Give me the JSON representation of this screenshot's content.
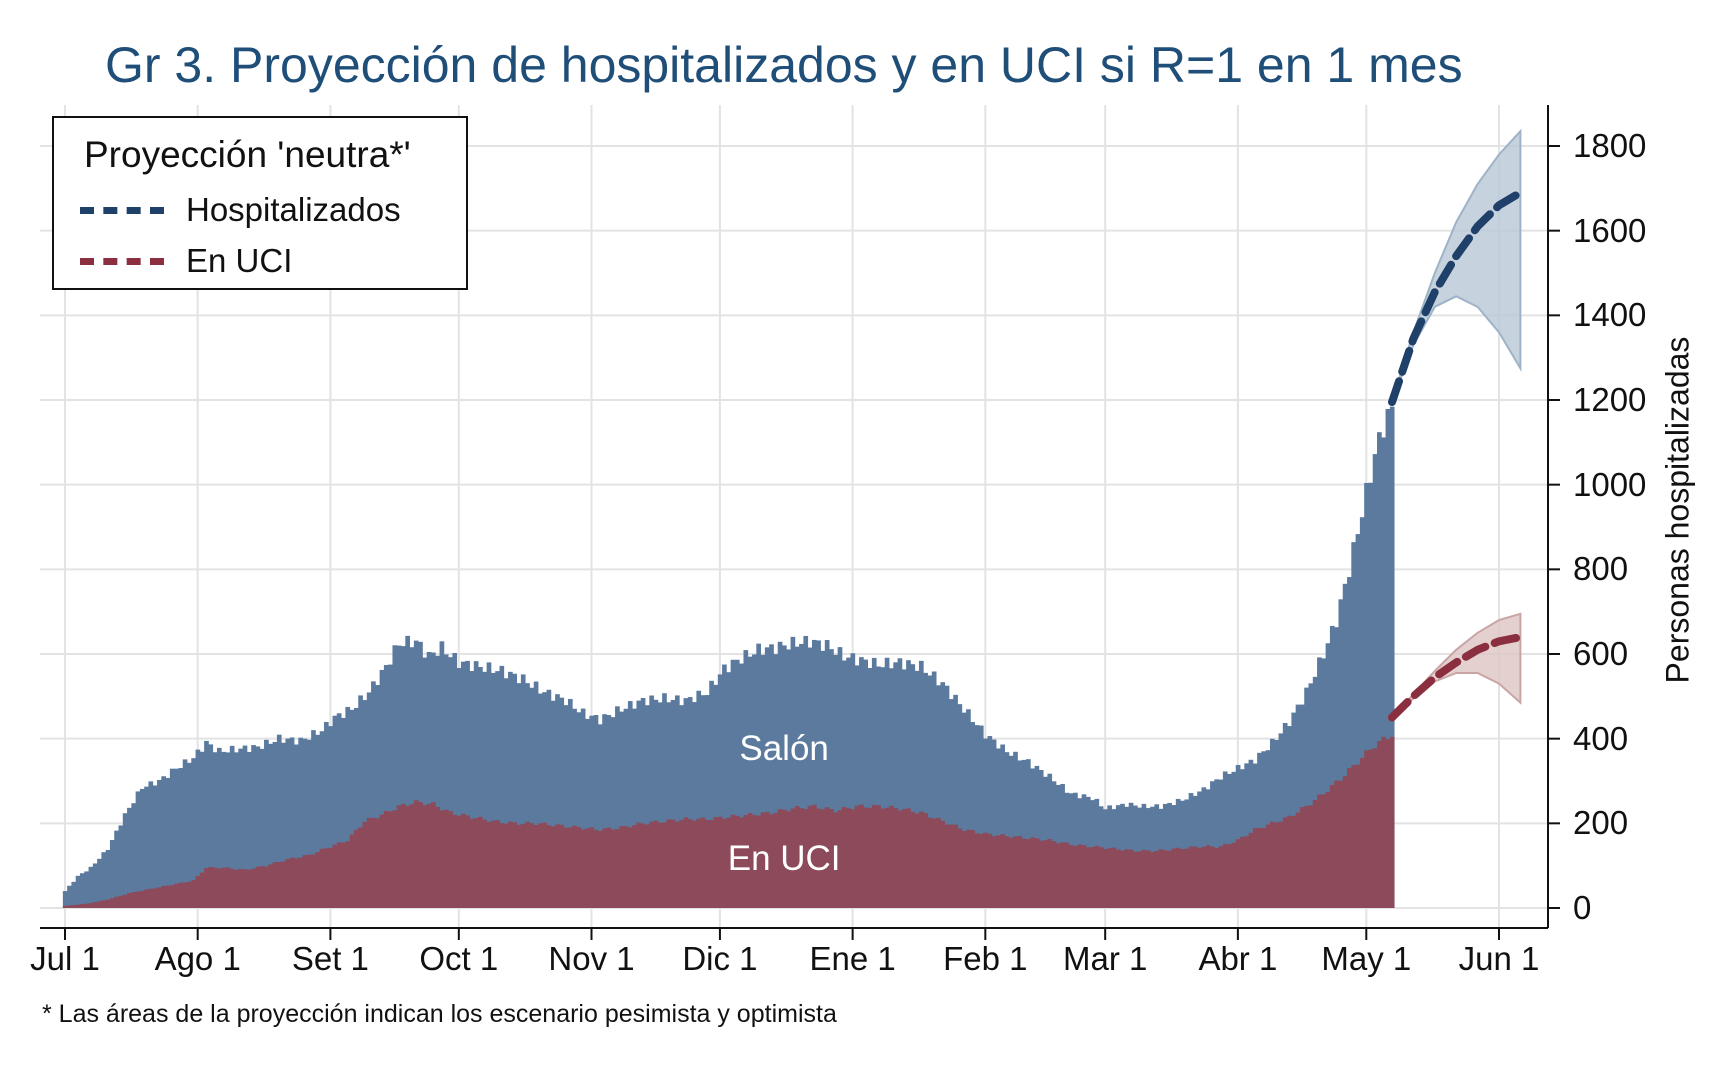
{
  "title": "Gr 3. Proyección de hospitalizados y en UCI si R=1 en 1 mes",
  "footnote": "* Las áreas de la proyección indican los escenario pesimista y optimista",
  "colors": {
    "title": "#1f4e79",
    "hosp_area": "#5b7a9e",
    "uci_area": "#8c4a5a",
    "hosp_line": "#1f4068",
    "uci_line": "#8b2e3f",
    "hosp_band": "#b8c7d6",
    "uci_band": "#dfc4c4",
    "grid": "#e3e3e3"
  },
  "chart_data": {
    "type": "area",
    "title": "Gr 3. Proyección de hospitalizados y en UCI si R=1 en 1 mes",
    "xlabel": "",
    "ylabel": "Personas hospitalizadas",
    "x_unit": "days since Jul 1",
    "xlim": [
      -2,
      364
    ],
    "ylim": [
      -50,
      1900
    ],
    "y_axis_position": "right",
    "grid": true,
    "x_ticks": [
      {
        "label": "Jul 1",
        "day": 0
      },
      {
        "label": "Ago 1",
        "day": 31
      },
      {
        "label": "Set 1",
        "day": 62
      },
      {
        "label": "Oct 1",
        "day": 92
      },
      {
        "label": "Nov 1",
        "day": 123
      },
      {
        "label": "Dic 1",
        "day": 153
      },
      {
        "label": "Ene 1",
        "day": 184
      },
      {
        "label": "Feb 1",
        "day": 215
      },
      {
        "label": "Mar 1",
        "day": 243
      },
      {
        "label": "Abr 1",
        "day": 274
      },
      {
        "label": "May 1",
        "day": 304
      },
      {
        "label": "Jun 1",
        "day": 335
      }
    ],
    "y_ticks": [
      0,
      200,
      400,
      600,
      800,
      1000,
      1200,
      1400,
      1600,
      1800
    ],
    "area_labels": [
      {
        "text": "Salón",
        "day": 168,
        "value": 375
      },
      {
        "text": "En UCI",
        "day": 168,
        "value": 115
      }
    ],
    "series": [
      {
        "name": "Hospitalizados (observado)",
        "kind": "area",
        "points": [
          [
            0,
            40
          ],
          [
            3,
            75
          ],
          [
            6,
            95
          ],
          [
            10,
            140
          ],
          [
            14,
            220
          ],
          [
            18,
            285
          ],
          [
            22,
            300
          ],
          [
            26,
            330
          ],
          [
            30,
            355
          ],
          [
            33,
            390
          ],
          [
            36,
            370
          ],
          [
            40,
            375
          ],
          [
            45,
            380
          ],
          [
            50,
            400
          ],
          [
            55,
            395
          ],
          [
            60,
            420
          ],
          [
            63,
            450
          ],
          [
            67,
            470
          ],
          [
            71,
            510
          ],
          [
            75,
            570
          ],
          [
            78,
            625
          ],
          [
            82,
            630
          ],
          [
            85,
            595
          ],
          [
            88,
            615
          ],
          [
            92,
            580
          ],
          [
            97,
            570
          ],
          [
            102,
            560
          ],
          [
            107,
            540
          ],
          [
            112,
            510
          ],
          [
            117,
            490
          ],
          [
            121,
            460
          ],
          [
            125,
            445
          ],
          [
            130,
            470
          ],
          [
            135,
            490
          ],
          [
            140,
            495
          ],
          [
            145,
            490
          ],
          [
            150,
            510
          ],
          [
            154,
            565
          ],
          [
            158,
            590
          ],
          [
            162,
            610
          ],
          [
            166,
            615
          ],
          [
            170,
            625
          ],
          [
            174,
            630
          ],
          [
            178,
            620
          ],
          [
            182,
            595
          ],
          [
            186,
            585
          ],
          [
            190,
            575
          ],
          [
            195,
            580
          ],
          [
            200,
            570
          ],
          [
            205,
            530
          ],
          [
            210,
            470
          ],
          [
            215,
            410
          ],
          [
            220,
            370
          ],
          [
            225,
            345
          ],
          [
            230,
            310
          ],
          [
            235,
            270
          ],
          [
            240,
            260
          ],
          [
            243,
            235
          ],
          [
            248,
            245
          ],
          [
            252,
            240
          ],
          [
            256,
            240
          ],
          [
            261,
            255
          ],
          [
            266,
            280
          ],
          [
            270,
            310
          ],
          [
            274,
            330
          ],
          [
            278,
            350
          ],
          [
            282,
            390
          ],
          [
            286,
            440
          ],
          [
            290,
            510
          ],
          [
            294,
            600
          ],
          [
            297,
            680
          ],
          [
            300,
            800
          ],
          [
            302,
            890
          ],
          [
            304,
            980
          ],
          [
            306,
            1070
          ],
          [
            308,
            1140
          ],
          [
            310,
            1180
          ]
        ]
      },
      {
        "name": "En UCI (observado)",
        "kind": "area",
        "points": [
          [
            0,
            5
          ],
          [
            5,
            10
          ],
          [
            10,
            20
          ],
          [
            15,
            35
          ],
          [
            20,
            45
          ],
          [
            25,
            55
          ],
          [
            30,
            65
          ],
          [
            33,
            95
          ],
          [
            37,
            95
          ],
          [
            42,
            90
          ],
          [
            47,
            100
          ],
          [
            52,
            115
          ],
          [
            57,
            125
          ],
          [
            62,
            145
          ],
          [
            66,
            160
          ],
          [
            70,
            205
          ],
          [
            74,
            220
          ],
          [
            78,
            240
          ],
          [
            82,
            250
          ],
          [
            86,
            245
          ],
          [
            90,
            225
          ],
          [
            95,
            215
          ],
          [
            100,
            205
          ],
          [
            105,
            200
          ],
          [
            110,
            200
          ],
          [
            115,
            195
          ],
          [
            120,
            190
          ],
          [
            125,
            185
          ],
          [
            130,
            190
          ],
          [
            135,
            200
          ],
          [
            140,
            205
          ],
          [
            145,
            210
          ],
          [
            150,
            210
          ],
          [
            155,
            215
          ],
          [
            160,
            220
          ],
          [
            165,
            225
          ],
          [
            170,
            235
          ],
          [
            175,
            240
          ],
          [
            180,
            230
          ],
          [
            185,
            240
          ],
          [
            190,
            240
          ],
          [
            195,
            235
          ],
          [
            200,
            225
          ],
          [
            205,
            205
          ],
          [
            210,
            185
          ],
          [
            215,
            175
          ],
          [
            220,
            170
          ],
          [
            225,
            165
          ],
          [
            230,
            160
          ],
          [
            235,
            150
          ],
          [
            240,
            145
          ],
          [
            245,
            140
          ],
          [
            250,
            135
          ],
          [
            255,
            135
          ],
          [
            260,
            140
          ],
          [
            265,
            145
          ],
          [
            270,
            145
          ],
          [
            274,
            160
          ],
          [
            278,
            185
          ],
          [
            282,
            200
          ],
          [
            286,
            215
          ],
          [
            290,
            240
          ],
          [
            294,
            270
          ],
          [
            298,
            305
          ],
          [
            302,
            345
          ],
          [
            306,
            385
          ],
          [
            310,
            410
          ]
        ]
      },
      {
        "name": "Hospitalizados",
        "kind": "dashed-line",
        "legend": true,
        "days": [
          310,
          315,
          320,
          325,
          330,
          335,
          340
        ],
        "values": [
          1195,
          1345,
          1455,
          1540,
          1610,
          1660,
          1690
        ]
      },
      {
        "name": "En UCI",
        "kind": "dashed-line",
        "legend": true,
        "days": [
          310,
          315,
          320,
          325,
          330,
          335,
          340
        ],
        "values": [
          450,
          500,
          545,
          580,
          610,
          630,
          640
        ]
      },
      {
        "name": "Hospitalizados (escenario)",
        "kind": "band",
        "days": [
          310,
          315,
          320,
          325,
          330,
          335,
          340
        ],
        "upper": [
          1195,
          1360,
          1500,
          1620,
          1710,
          1780,
          1835
        ],
        "lower": [
          1195,
          1330,
          1420,
          1445,
          1420,
          1360,
          1275
        ]
      },
      {
        "name": "En UCI (escenario)",
        "kind": "band",
        "days": [
          310,
          315,
          320,
          325,
          330,
          335,
          340
        ],
        "upper": [
          450,
          505,
          560,
          610,
          650,
          680,
          695
        ],
        "lower": [
          450,
          495,
          535,
          555,
          555,
          530,
          485
        ]
      }
    ]
  },
  "legend": {
    "title": "Proyección 'neutra*'",
    "items": [
      {
        "label": "Hospitalizados",
        "color": "#1f4068"
      },
      {
        "label": "En UCI",
        "color": "#8b2e3f"
      }
    ]
  }
}
